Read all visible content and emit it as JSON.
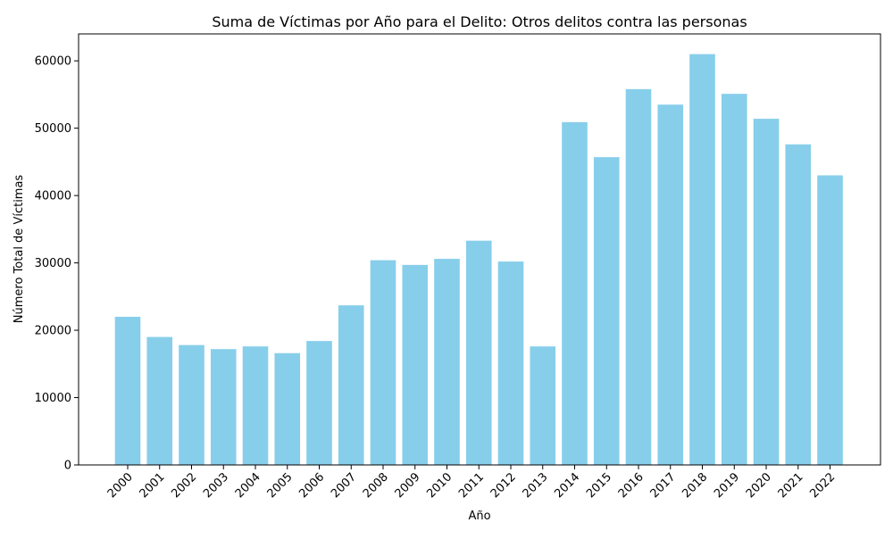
{
  "chart_data": {
    "type": "bar",
    "title": "Suma de Víctimas por Año para el Delito: Otros delitos contra las personas",
    "xlabel": "Año",
    "ylabel": "Número Total de Víctimas",
    "ylim": [
      0,
      64000
    ],
    "yticks": [
      0,
      10000,
      20000,
      30000,
      40000,
      50000,
      60000
    ],
    "grid": false,
    "bar_color": "#87ceeb",
    "categories": [
      "2000",
      "2001",
      "2002",
      "2003",
      "2004",
      "2005",
      "2006",
      "2007",
      "2008",
      "2009",
      "2010",
      "2011",
      "2012",
      "2013",
      "2014",
      "2015",
      "2016",
      "2017",
      "2018",
      "2019",
      "2020",
      "2021",
      "2022"
    ],
    "values": [
      22000,
      19000,
      17800,
      17200,
      17600,
      16600,
      18400,
      23700,
      30400,
      29700,
      30600,
      33300,
      30200,
      17600,
      50900,
      45700,
      55800,
      53500,
      61000,
      55100,
      51400,
      47600,
      43000
    ]
  }
}
